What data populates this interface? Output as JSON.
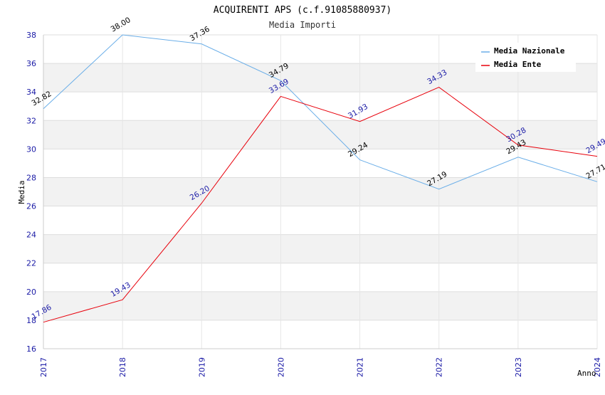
{
  "chart_data": {
    "type": "line",
    "title": "ACQUIRENTI APS (c.f.91085880937)",
    "subtitle": "Media Importi",
    "ylabel": "Media",
    "xlabel": "Anno",
    "ylim": [
      16,
      38
    ],
    "yticks": [
      16,
      18,
      20,
      22,
      24,
      26,
      28,
      30,
      32,
      34,
      36,
      38
    ],
    "categories": [
      "2017",
      "2018",
      "2019",
      "2020",
      "2021",
      "2022",
      "2023",
      "2024"
    ],
    "grid": true,
    "legend_position": "top-right",
    "series": [
      {
        "name": "Media Nazionale",
        "color": "#6aaee8",
        "label_color": "#000000",
        "values": [
          32.82,
          38.0,
          37.36,
          34.79,
          29.24,
          27.19,
          29.43,
          27.71
        ],
        "labels": [
          "32.82",
          "38.00",
          "37.36",
          "34.79",
          "29.24",
          "27.19",
          "29.43",
          "27.71"
        ]
      },
      {
        "name": "Media Ente",
        "color": "#e8000b",
        "label_color": "#1a1aa6",
        "values": [
          17.86,
          19.43,
          26.2,
          33.69,
          31.93,
          34.33,
          30.28,
          29.49
        ],
        "labels": [
          "17.86",
          "19.43",
          "26.20",
          "33.69",
          "31.93",
          "34.33",
          "30.28",
          "29.49"
        ]
      }
    ]
  }
}
